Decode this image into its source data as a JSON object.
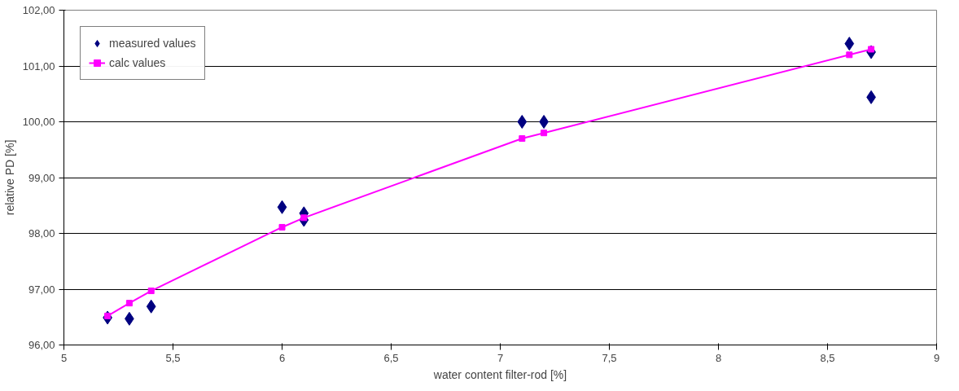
{
  "chart_data": {
    "type": "scatter",
    "xlabel": "water content filter-rod [%]",
    "ylabel": "relative PD [%]",
    "xlim": [
      5,
      9
    ],
    "ylim": [
      96,
      102
    ],
    "xticks": [
      5,
      {
        "value": 5.5,
        "label": "5,5"
      },
      6,
      {
        "value": 6.5,
        "label": "6,5"
      },
      7,
      {
        "value": 7.5,
        "label": "7,5"
      },
      8,
      {
        "value": 8.5,
        "label": "8,5"
      },
      9
    ],
    "yticks": [
      {
        "value": 96,
        "label": "96,00"
      },
      {
        "value": 97,
        "label": "97,00"
      },
      {
        "value": 98,
        "label": "98,00"
      },
      {
        "value": 99,
        "label": "99,00"
      },
      {
        "value": 100,
        "label": "100,00"
      },
      {
        "value": 101,
        "label": "101,00"
      },
      {
        "value": 102,
        "label": "102,00"
      }
    ],
    "grid": "y",
    "legend": "top left",
    "series": [
      {
        "name": "measured values",
        "marker": "diamond",
        "color": "#000080",
        "x": [
          5.2,
          5.3,
          5.4,
          6.0,
          6.1,
          6.1,
          7.1,
          7.2,
          8.6,
          8.7,
          8.7
        ],
        "values": [
          96.49,
          96.47,
          96.69,
          98.47,
          98.36,
          98.24,
          100.0,
          100.0,
          101.4,
          101.25,
          100.44
        ]
      },
      {
        "name": "calc values",
        "type": "line",
        "marker": "square",
        "color": "#ff00ff",
        "x": [
          5.2,
          5.3,
          5.4,
          6.0,
          6.1,
          7.1,
          7.2,
          8.6,
          8.7
        ],
        "values": [
          96.52,
          96.75,
          96.97,
          98.11,
          98.28,
          99.7,
          99.8,
          101.2,
          101.3
        ]
      }
    ]
  }
}
